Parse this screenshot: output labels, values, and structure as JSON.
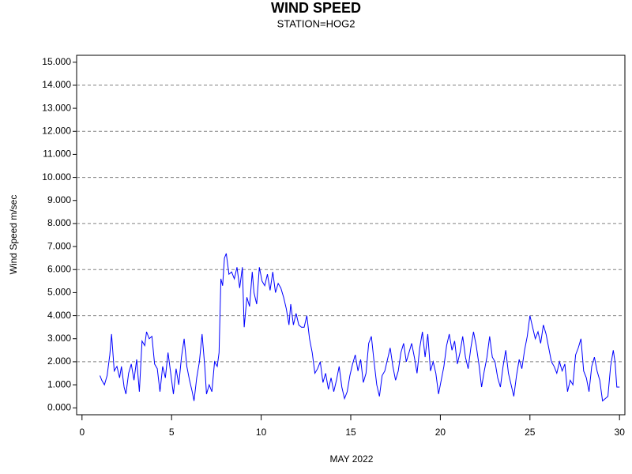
{
  "chart_data": {
    "type": "line",
    "title": "WIND SPEED",
    "subtitle": "STATION=HOG2",
    "x_label": "MAY 2022",
    "y_label": "Wind Speed m/sec",
    "xlim": [
      -0.3,
      30.3
    ],
    "ylim": [
      -0.3,
      15.3
    ],
    "xticks": [
      0,
      5,
      10,
      15,
      20,
      25,
      30
    ],
    "yticks": [
      {
        "value": 0,
        "label": "0.000"
      },
      {
        "value": 1,
        "label": "1.000"
      },
      {
        "value": 2,
        "label": "2.000"
      },
      {
        "value": 3,
        "label": "3.000"
      },
      {
        "value": 4,
        "label": "4.000"
      },
      {
        "value": 5,
        "label": "5.000"
      },
      {
        "value": 6,
        "label": "6.000"
      },
      {
        "value": 7,
        "label": "7.000"
      },
      {
        "value": 8,
        "label": "8.000"
      },
      {
        "value": 9,
        "label": "9.000"
      },
      {
        "value": 10,
        "label": "10.000"
      },
      {
        "value": 11,
        "label": "11.000"
      },
      {
        "value": 12,
        "label": "12.000"
      },
      {
        "value": 13,
        "label": "13.000"
      },
      {
        "value": 14,
        "label": "14.000"
      },
      {
        "value": 15,
        "label": "15.000"
      }
    ],
    "ygrid": [
      2,
      4,
      6,
      8,
      10,
      12,
      14
    ],
    "x": [
      1.0,
      1.1,
      1.25,
      1.4,
      1.55,
      1.65,
      1.8,
      1.95,
      2.1,
      2.2,
      2.35,
      2.45,
      2.6,
      2.75,
      2.9,
      3.05,
      3.2,
      3.35,
      3.5,
      3.6,
      3.75,
      3.9,
      4.05,
      4.2,
      4.35,
      4.5,
      4.65,
      4.8,
      4.95,
      5.1,
      5.25,
      5.4,
      5.55,
      5.7,
      5.85,
      6.0,
      6.15,
      6.25,
      6.4,
      6.55,
      6.7,
      6.85,
      6.95,
      7.1,
      7.25,
      7.4,
      7.55,
      7.65,
      7.75,
      7.85,
      7.95,
      8.05,
      8.2,
      8.35,
      8.5,
      8.65,
      8.8,
      8.95,
      9.05,
      9.2,
      9.35,
      9.5,
      9.6,
      9.75,
      9.9,
      10.05,
      10.2,
      10.35,
      10.5,
      10.65,
      10.8,
      10.95,
      11.1,
      11.25,
      11.4,
      11.55,
      11.65,
      11.8,
      11.95,
      12.1,
      12.25,
      12.4,
      12.55,
      12.7,
      12.85,
      13.0,
      13.15,
      13.3,
      13.45,
      13.6,
      13.75,
      13.9,
      14.05,
      14.2,
      14.35,
      14.5,
      14.65,
      14.8,
      14.95,
      15.1,
      15.25,
      15.4,
      15.55,
      15.7,
      15.85,
      16.0,
      16.15,
      16.3,
      16.45,
      16.6,
      16.75,
      16.9,
      17.05,
      17.2,
      17.35,
      17.5,
      17.65,
      17.8,
      17.95,
      18.1,
      18.25,
      18.4,
      18.55,
      18.7,
      18.85,
      19.0,
      19.15,
      19.3,
      19.45,
      19.6,
      19.75,
      19.9,
      20.05,
      20.2,
      20.35,
      20.5,
      20.65,
      20.8,
      20.95,
      21.1,
      21.25,
      21.4,
      21.55,
      21.7,
      21.85,
      22.0,
      22.15,
      22.3,
      22.45,
      22.6,
      22.75,
      22.9,
      23.05,
      23.2,
      23.35,
      23.5,
      23.65,
      23.8,
      23.95,
      24.1,
      24.25,
      24.4,
      24.55,
      24.7,
      24.85,
      25.0,
      25.15,
      25.3,
      25.45,
      25.6,
      25.75,
      25.9,
      26.05,
      26.2,
      26.35,
      26.5,
      26.65,
      26.8,
      26.95,
      27.1,
      27.25,
      27.4,
      27.55,
      27.7,
      27.85,
      28.0,
      28.15,
      28.3,
      28.45,
      28.6,
      28.75,
      28.9,
      29.05,
      29.2,
      29.35,
      29.5,
      29.65,
      29.75,
      29.85,
      30.0
    ],
    "series": [
      {
        "color": "#0000ff",
        "values": [
          1.4,
          1.2,
          1.0,
          1.4,
          2.3,
          3.2,
          1.6,
          1.8,
          1.3,
          1.8,
          0.9,
          0.6,
          1.5,
          1.9,
          1.2,
          2.1,
          0.7,
          2.9,
          2.7,
          3.3,
          3.0,
          3.1,
          1.9,
          1.7,
          0.7,
          1.8,
          1.3,
          2.4,
          1.5,
          0.6,
          1.7,
          1.0,
          2.2,
          3.0,
          1.8,
          1.2,
          0.7,
          0.3,
          1.3,
          2.0,
          3.2,
          1.8,
          0.6,
          1.0,
          0.7,
          2.0,
          1.8,
          2.4,
          5.6,
          5.3,
          6.5,
          6.7,
          5.8,
          5.9,
          5.6,
          6.1,
          5.2,
          6.1,
          3.5,
          4.8,
          4.4,
          5.9,
          5.0,
          4.5,
          6.1,
          5.5,
          5.3,
          5.8,
          5.1,
          5.9,
          5.0,
          5.4,
          5.2,
          4.8,
          4.3,
          3.6,
          4.5,
          3.6,
          4.1,
          3.6,
          3.5,
          3.5,
          4.0,
          3.0,
          2.4,
          1.5,
          1.7,
          2.0,
          1.1,
          1.5,
          0.8,
          1.3,
          0.7,
          1.2,
          1.8,
          0.9,
          0.4,
          0.7,
          1.4,
          1.9,
          2.3,
          1.6,
          2.1,
          1.1,
          1.5,
          2.8,
          3.1,
          2.0,
          1.0,
          0.5,
          1.4,
          1.6,
          2.1,
          2.6,
          1.8,
          1.2,
          1.6,
          2.4,
          2.8,
          2.0,
          2.4,
          2.8,
          2.2,
          1.5,
          2.6,
          3.3,
          2.2,
          3.2,
          1.6,
          2.0,
          1.5,
          0.6,
          1.2,
          1.8,
          2.7,
          3.2,
          2.5,
          2.9,
          1.9,
          2.4,
          3.1,
          2.2,
          1.7,
          2.6,
          3.3,
          2.7,
          1.9,
          0.9,
          1.6,
          2.2,
          3.1,
          2.2,
          2.0,
          1.3,
          0.9,
          1.8,
          2.5,
          1.5,
          1.0,
          0.5,
          1.4,
          2.1,
          1.7,
          2.5,
          3.1,
          4.0,
          3.5,
          3.0,
          3.3,
          2.8,
          3.6,
          3.2,
          2.6,
          2.0,
          1.8,
          1.5,
          2.0,
          1.6,
          1.9,
          0.7,
          1.2,
          1.0,
          2.3,
          2.6,
          3.0,
          1.6,
          1.3,
          0.7,
          1.8,
          2.2,
          1.6,
          1.2,
          0.3,
          0.4,
          0.5,
          1.8,
          2.5,
          2.0,
          0.9,
          0.9
        ]
      }
    ]
  }
}
